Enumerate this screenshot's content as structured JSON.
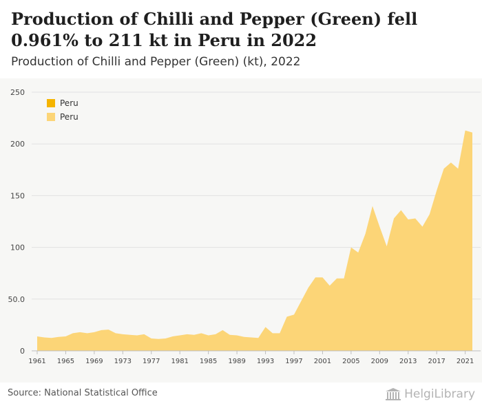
{
  "header": {
    "title": "Production of Chilli and Pepper (Green) fell 0.961% to 211 kt in Peru in 2022",
    "subtitle": "Production of Chilli and Pepper (Green) (kt), 2022"
  },
  "footer": {
    "source": "Source: National Statistical Office",
    "logo_text": "HelgiLibrary"
  },
  "colors": {
    "legend_dark": "#f5b400",
    "area_fill": "#fcd577",
    "grid": "#e2e2e2",
    "axis_text": "#444444"
  },
  "chart_data": {
    "type": "area",
    "title": "Production of Chilli and Pepper (Green) (kt), 2022",
    "legend": [
      "Peru",
      "Peru"
    ],
    "legend_position": "top-left",
    "grid": true,
    "ylim": [
      0,
      250
    ],
    "yticks": [
      "0",
      "50.0",
      "100",
      "150",
      "200",
      "250"
    ],
    "ytick_values": [
      0,
      50,
      100,
      150,
      200,
      250
    ],
    "xticks": [
      "1961",
      "1965",
      "1969",
      "1973",
      "1977",
      "1981",
      "1985",
      "1989",
      "1993",
      "1997",
      "2001",
      "2005",
      "2009",
      "2013",
      "2017",
      "2021"
    ],
    "xlim": [
      1961,
      2022
    ],
    "series": [
      {
        "name": "Peru",
        "x": [
          1961,
          1962,
          1963,
          1964,
          1965,
          1966,
          1967,
          1968,
          1969,
          1970,
          1971,
          1972,
          1973,
          1974,
          1975,
          1976,
          1977,
          1978,
          1979,
          1980,
          1981,
          1982,
          1983,
          1984,
          1985,
          1986,
          1987,
          1988,
          1989,
          1990,
          1991,
          1992,
          1993,
          1994,
          1995,
          1996,
          1997,
          1998,
          1999,
          2000,
          2001,
          2002,
          2003,
          2004,
          2005,
          2006,
          2007,
          2008,
          2009,
          2010,
          2011,
          2012,
          2013,
          2014,
          2015,
          2016,
          2017,
          2018,
          2019,
          2020,
          2021,
          2022
        ],
        "values": [
          14,
          13,
          12.5,
          13.5,
          14,
          17,
          18,
          17,
          18,
          20,
          20.5,
          17,
          16,
          15.5,
          15,
          16,
          12,
          11.5,
          12,
          14,
          15,
          16,
          15.5,
          17,
          15,
          16,
          20,
          15.5,
          15,
          13.5,
          13,
          12.5,
          23,
          17,
          17,
          33,
          35,
          48,
          61,
          71,
          71,
          63,
          70,
          70,
          100,
          95,
          113,
          140,
          120,
          101,
          128,
          136,
          127,
          128,
          120,
          132,
          155,
          176,
          182,
          176,
          213,
          211
        ]
      }
    ]
  }
}
